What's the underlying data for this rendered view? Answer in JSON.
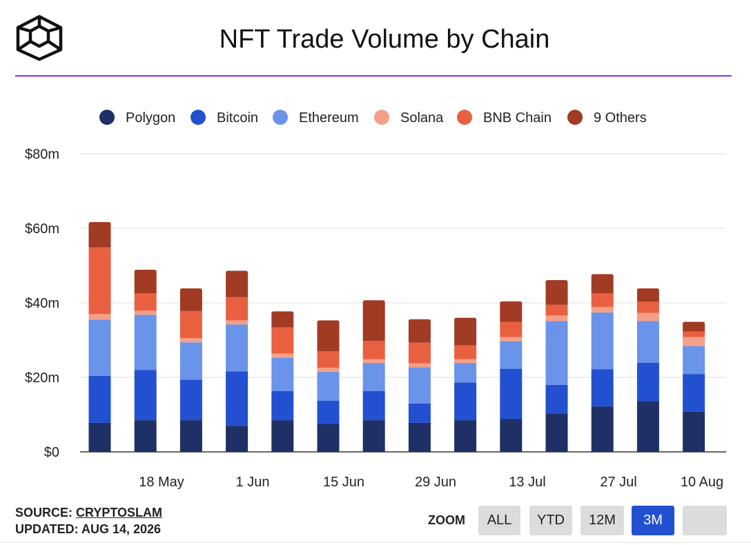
{
  "header": {
    "title": "NFT Trade Volume by Chain",
    "logo_icon": "isometric-cube-logo"
  },
  "footer": {
    "source_prefix": "SOURCE: ",
    "source_name": "CRYPTOSLAM",
    "updated": "UPDATED: AUG 14, 2026"
  },
  "zoom": {
    "label": "ZOOM",
    "buttons": [
      {
        "label": "ALL",
        "active": false
      },
      {
        "label": "YTD",
        "active": false
      },
      {
        "label": "12M",
        "active": false
      },
      {
        "label": "3M",
        "active": true
      },
      {
        "label": "",
        "active": false
      }
    ]
  },
  "chart_data": {
    "type": "bar",
    "stacked": true,
    "title": "NFT Trade Volume by Chain",
    "xlabel": "",
    "ylabel": "",
    "ylim": [
      0,
      80
    ],
    "yticks": [
      0,
      20,
      40,
      60,
      80
    ],
    "ytick_labels": [
      "$0",
      "$20m",
      "$40m",
      "$60m",
      "$80m"
    ],
    "xtick_labels": [
      "18 May",
      "1 Jun",
      "15 Jun",
      "29 Jun",
      "13 Jul",
      "27 Jul",
      "10 Aug"
    ],
    "grid": true,
    "legend_position": "top",
    "series": [
      {
        "name": "Polygon",
        "color": "#1e3066",
        "values": [
          7.8,
          8.5,
          8.5,
          7,
          8.5,
          7.5,
          8.5,
          7.8,
          8.5,
          8.8,
          10.3,
          12.2,
          13.6,
          10.8
        ]
      },
      {
        "name": "Bitcoin",
        "color": "#2250d0",
        "values": [
          12.6,
          13.5,
          10.9,
          14.6,
          7.8,
          6.2,
          7.8,
          5.2,
          10.1,
          13.5,
          7.7,
          10.0,
          10.3,
          10.1
        ]
      },
      {
        "name": "Ethereum",
        "color": "#6a93ea",
        "values": [
          15.1,
          14.8,
          10.0,
          12.6,
          9.0,
          7.8,
          7.5,
          9.7,
          5.2,
          7.4,
          17.1,
          15.2,
          11.2,
          7.5
        ]
      },
      {
        "name": "Solana",
        "color": "#f4a088",
        "values": [
          1.5,
          1.1,
          1.1,
          1.1,
          1.1,
          1.1,
          1.1,
          1.1,
          1.1,
          1.1,
          1.5,
          1.5,
          2.2,
          2.4
        ]
      },
      {
        "name": "BNB Chain",
        "color": "#e96041",
        "values": [
          17.9,
          4.7,
          7.3,
          6.2,
          7.0,
          4.4,
          4.9,
          5.5,
          3.7,
          4.1,
          2.9,
          3.7,
          3.0,
          1.5
        ]
      },
      {
        "name": "9 Others",
        "color": "#a13b24",
        "values": [
          6.8,
          6.3,
          6.1,
          7.1,
          4.3,
          8.3,
          10.9,
          6.3,
          7.4,
          5.5,
          6.6,
          5.1,
          3.6,
          2.6
        ]
      }
    ]
  }
}
